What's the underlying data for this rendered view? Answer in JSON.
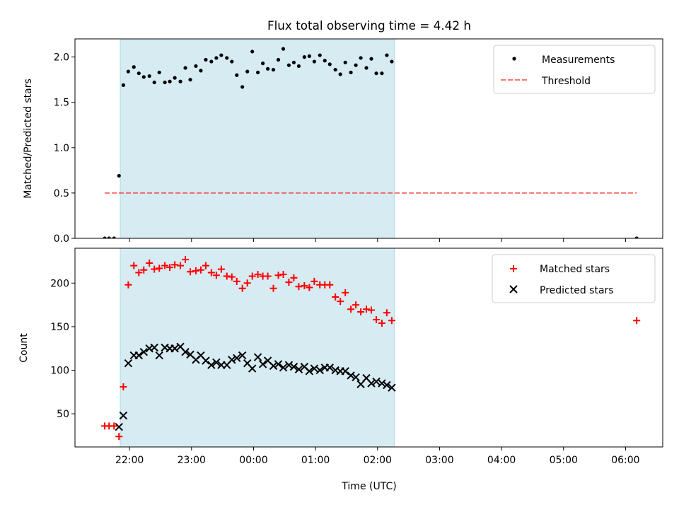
{
  "figure": {
    "title": "Flux total observing time = 4.42 h",
    "xlabel": "Time (UTC)"
  },
  "colors": {
    "shade": "#add8e6",
    "measurement": "#000000",
    "threshold": "#ff0000",
    "matched": "#ff0000",
    "predicted": "#000000"
  },
  "chart_data": [
    {
      "type": "scatter",
      "ylabel": "Matched/Predicted stars",
      "x_unit": "hours after 00:00 UTC",
      "xlim": [
        -2.88,
        6.6
      ],
      "ylim": [
        0,
        2.2
      ],
      "yticks": [
        0,
        0.5,
        1.0,
        1.5,
        2.0
      ],
      "ytick_labels": [
        "0.0",
        "0.5",
        "1.0",
        "1.5",
        "2.0"
      ],
      "grid": false,
      "legend_position": "top-right",
      "observing_window": [
        -2.15,
        2.27
      ],
      "series": [
        {
          "name": "Measurements",
          "kind": "dot",
          "x": [
            -2.4,
            -2.33,
            -2.25,
            -2.17,
            -2.1,
            -2.02,
            -1.93,
            -1.85,
            -1.77,
            -1.68,
            -1.6,
            -1.52,
            -1.43,
            -1.35,
            -1.27,
            -1.18,
            -1.1,
            -1.02,
            -0.93,
            -0.85,
            -0.77,
            -0.68,
            -0.6,
            -0.52,
            -0.43,
            -0.35,
            -0.27,
            -0.18,
            -0.1,
            -0.02,
            0.07,
            0.15,
            0.23,
            0.32,
            0.4,
            0.48,
            0.57,
            0.65,
            0.73,
            0.82,
            0.9,
            0.98,
            1.07,
            1.15,
            1.23,
            1.32,
            1.4,
            1.48,
            1.57,
            1.65,
            1.73,
            1.82,
            1.9,
            1.98,
            2.07,
            2.15,
            2.23,
            6.18
          ],
          "y": [
            0.0,
            0.0,
            0.0,
            0.69,
            1.69,
            1.84,
            1.89,
            1.82,
            1.78,
            1.79,
            1.72,
            1.83,
            1.72,
            1.73,
            1.77,
            1.73,
            1.88,
            1.75,
            1.9,
            1.85,
            1.97,
            1.95,
            1.99,
            2.02,
            1.99,
            1.95,
            1.8,
            1.67,
            1.84,
            2.06,
            1.83,
            1.93,
            1.87,
            1.86,
            1.97,
            2.09,
            1.91,
            1.94,
            1.9,
            2.0,
            2.01,
            1.95,
            2.02,
            1.96,
            1.92,
            1.86,
            1.81,
            1.94,
            1.83,
            1.91,
            1.99,
            1.88,
            1.98,
            1.82,
            1.82,
            2.02,
            1.95,
            0.0
          ]
        },
        {
          "name": "Threshold",
          "kind": "dashed-line",
          "x": [
            -2.4,
            6.18
          ],
          "y": [
            0.5,
            0.5
          ]
        }
      ]
    },
    {
      "type": "scatter",
      "ylabel": "Count",
      "x_unit": "hours after 00:00 UTC",
      "xlim": [
        -2.88,
        6.6
      ],
      "ylim": [
        12,
        240
      ],
      "yticks": [
        50,
        100,
        150,
        200
      ],
      "ytick_labels": [
        "50",
        "100",
        "150",
        "200"
      ],
      "xticks": [
        -2,
        -1,
        0,
        1,
        2,
        3,
        4,
        5,
        6
      ],
      "xtick_labels": [
        "22:00",
        "23:00",
        "00:00",
        "01:00",
        "02:00",
        "03:00",
        "04:00",
        "05:00",
        "06:00"
      ],
      "grid": false,
      "legend_position": "top-right",
      "observing_window": [
        -2.15,
        2.27
      ],
      "series": [
        {
          "name": "Matched stars",
          "kind": "plus",
          "x": [
            -2.4,
            -2.33,
            -2.25,
            -2.17,
            -2.1,
            -2.02,
            -1.93,
            -1.85,
            -1.77,
            -1.68,
            -1.6,
            -1.52,
            -1.43,
            -1.35,
            -1.27,
            -1.18,
            -1.1,
            -1.02,
            -0.93,
            -0.85,
            -0.77,
            -0.68,
            -0.6,
            -0.52,
            -0.43,
            -0.35,
            -0.27,
            -0.18,
            -0.1,
            -0.02,
            0.07,
            0.15,
            0.23,
            0.32,
            0.4,
            0.48,
            0.57,
            0.65,
            0.73,
            0.82,
            0.9,
            0.98,
            1.07,
            1.15,
            1.23,
            1.32,
            1.4,
            1.48,
            1.57,
            1.65,
            1.73,
            1.82,
            1.9,
            1.98,
            2.07,
            2.15,
            2.23,
            6.18
          ],
          "y": [
            36,
            36,
            36,
            24,
            81,
            198,
            220,
            212,
            215,
            223,
            216,
            217,
            220,
            218,
            221,
            220,
            227,
            213,
            214,
            215,
            220,
            212,
            209,
            216,
            208,
            207,
            202,
            194,
            200,
            208,
            210,
            208,
            208,
            194,
            209,
            210,
            201,
            206,
            196,
            197,
            195,
            202,
            198,
            198,
            198,
            184,
            179,
            189,
            170,
            175,
            167,
            170,
            169,
            158,
            154,
            166,
            157,
            157
          ]
        },
        {
          "name": "Predicted stars",
          "kind": "cross",
          "x": [
            -2.17,
            -2.1,
            -2.02,
            -1.93,
            -1.85,
            -1.77,
            -1.68,
            -1.6,
            -1.52,
            -1.43,
            -1.35,
            -1.27,
            -1.18,
            -1.1,
            -1.02,
            -0.93,
            -0.85,
            -0.77,
            -0.68,
            -0.6,
            -0.52,
            -0.43,
            -0.35,
            -0.27,
            -0.18,
            -0.1,
            -0.02,
            0.07,
            0.15,
            0.23,
            0.32,
            0.4,
            0.48,
            0.57,
            0.65,
            0.73,
            0.82,
            0.9,
            0.98,
            1.07,
            1.15,
            1.23,
            1.32,
            1.4,
            1.48,
            1.57,
            1.65,
            1.73,
            1.82,
            1.9,
            1.98,
            2.07,
            2.15,
            2.23
          ],
          "y": [
            35,
            48,
            108,
            117,
            117,
            121,
            125,
            126,
            117,
            126,
            125,
            125,
            127,
            121,
            118,
            112,
            117,
            111,
            106,
            109,
            106,
            106,
            112,
            114,
            117,
            108,
            102,
            115,
            107,
            111,
            105,
            107,
            103,
            106,
            104,
            101,
            104,
            99,
            102,
            100,
            103,
            103,
            100,
            99,
            99,
            94,
            92,
            84,
            91,
            85,
            87,
            85,
            83,
            80
          ]
        }
      ]
    }
  ]
}
